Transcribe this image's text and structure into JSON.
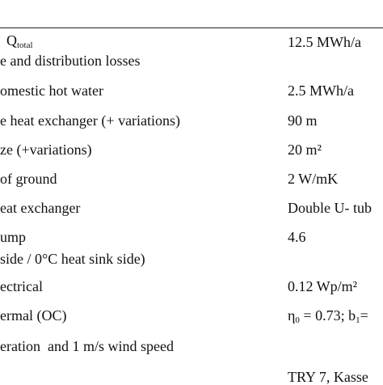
{
  "table": {
    "rows": [
      {
        "left": {
          "main": "Q",
          "sub": "total"
        },
        "right": "12.5 MWh/a"
      },
      {
        "left": "e and distribution losses"
      },
      {
        "left": "omestic hot water",
        "right": "2.5 MWh/a"
      },
      {
        "left": "e heat exchanger (+ variations)",
        "right": "90 m"
      },
      {
        "left": "ze (+variations)",
        "right": "20 m²"
      },
      {
        "left": "of ground",
        "right": "2 W/mK"
      },
      {
        "left": "eat exchanger",
        "right": "Double U- tub"
      },
      {
        "left": "ump",
        "right": "4.6"
      },
      {
        "left": "side / 0°C heat sink side)"
      },
      {
        "left": "ectrical",
        "right": "0.12 Wp/m²"
      },
      {
        "left": "ermal (OC)",
        "right": [
          "η",
          "0",
          " = 0.73; b",
          "1",
          "="
        ]
      },
      {
        "left": "eration  and 1 m/s wind speed"
      },
      {
        "right": "TRY 7, Kasse"
      }
    ]
  }
}
